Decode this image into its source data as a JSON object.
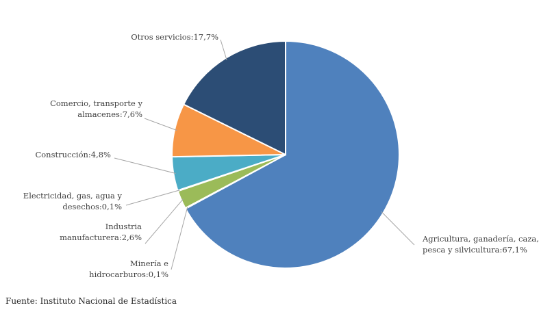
{
  "chart_data": {
    "type": "pie",
    "title": "",
    "slices": [
      {
        "label": "Agricultura, ganadería, caza, pesca y silvicultura",
        "value": 67.1,
        "value_label": "67,1%",
        "color": "#4f81bd"
      },
      {
        "label": "Minería e hidrocarburos",
        "value": 0.1,
        "value_label": "0,1%",
        "color": "#c0504d"
      },
      {
        "label": "Industria manufacturera",
        "value": 2.6,
        "value_label": "2,6%",
        "color": "#9bbb59"
      },
      {
        "label": "Electricidad, gas, agua y desechos",
        "value": 0.1,
        "value_label": "0,1%",
        "color": "#8064a2"
      },
      {
        "label": "Construcción",
        "value": 4.8,
        "value_label": "4,8%",
        "color": "#4bacc6"
      },
      {
        "label": "Comercio, transporte y almacenes",
        "value": 7.6,
        "value_label": "7,6%",
        "color": "#f79646"
      },
      {
        "label": "Otros servicios",
        "value": 17.7,
        "value_label": "17,7%",
        "color": "#2c4d75"
      }
    ],
    "start_angle": "12 o'clock",
    "direction": "clockwise",
    "legend": "none"
  },
  "labels": [
    {
      "lines": [
        "Agricultura, ganadería, caza,",
        "pesca y silvicultura:67,1%"
      ]
    },
    {
      "lines": [
        "Minería e",
        "hidrocarburos:0,1%"
      ]
    },
    {
      "lines": [
        "Industria",
        "manufacturera:2,6%"
      ]
    },
    {
      "lines": [
        "Electricidad, gas, agua y",
        "desechos:0,1%"
      ]
    },
    {
      "lines": [
        "Construcción:4,8%"
      ]
    },
    {
      "lines": [
        "Comercio, transporte y",
        "almacenes:7,6%"
      ]
    },
    {
      "lines": [
        "Otros servicios:17,7%"
      ]
    }
  ],
  "source": "Fuente: Instituto Nacional de Estadística"
}
